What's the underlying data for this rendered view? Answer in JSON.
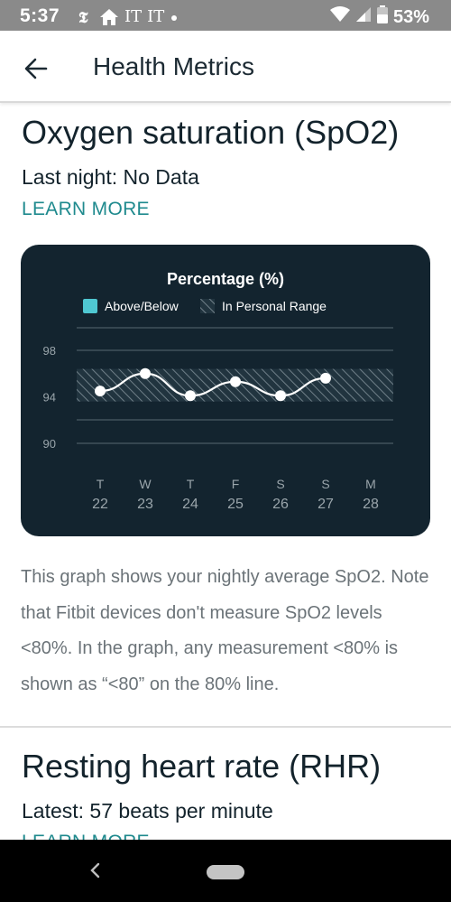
{
  "status_bar": {
    "time": "5:37",
    "notifications": [
      "nyt-icon",
      "home-icon",
      "IT",
      "IT",
      "dot"
    ],
    "notif_it_1": "IT",
    "notif_it_2": "IT",
    "battery": "53%"
  },
  "app_bar": {
    "title": "Health Metrics",
    "back_icon": "arrow-left-icon"
  },
  "spo2": {
    "title": "Oxygen saturation (SpO2)",
    "last_night": "Last night: No Data",
    "learn_more": "LEARN MORE",
    "description": "This graph shows your nightly average SpO2. Note that Fitbit devices don't measure SpO2 levels <80%. In the graph, any measurement <80% is shown as “<80” on the 80% line."
  },
  "chart_data": {
    "type": "line",
    "title": "Percentage (%)",
    "legend": [
      {
        "label": "Above/Below",
        "color": "#4fc7d1"
      },
      {
        "label": "In Personal Range",
        "pattern": "hatched"
      }
    ],
    "legend_position": "top",
    "y_ticks": [
      98,
      94,
      90
    ],
    "ylim": [
      88,
      100
    ],
    "personal_range": [
      93.6,
      96.4
    ],
    "x": [
      {
        "day": "T",
        "date": "22"
      },
      {
        "day": "W",
        "date": "23"
      },
      {
        "day": "T",
        "date": "24"
      },
      {
        "day": "F",
        "date": "25"
      },
      {
        "day": "S",
        "date": "26"
      },
      {
        "day": "S",
        "date": "27"
      },
      {
        "day": "M",
        "date": "28"
      }
    ],
    "series": [
      {
        "values": [
          94.5,
          96.0,
          94.1,
          95.3,
          94.1,
          95.6,
          null
        ]
      }
    ],
    "grid": true,
    "colors": {
      "background": "#13242f",
      "line": "#ffffff",
      "grid": "#4a5a63",
      "text": "#9aa5ab"
    }
  },
  "rhr": {
    "title": "Resting heart rate (RHR)",
    "latest": "Latest: 57 beats per minute",
    "learn_more": "LEARN MORE"
  },
  "nav_bar": {
    "back_icon": "nav-back-icon",
    "home_icon": "nav-home-pill-icon"
  }
}
